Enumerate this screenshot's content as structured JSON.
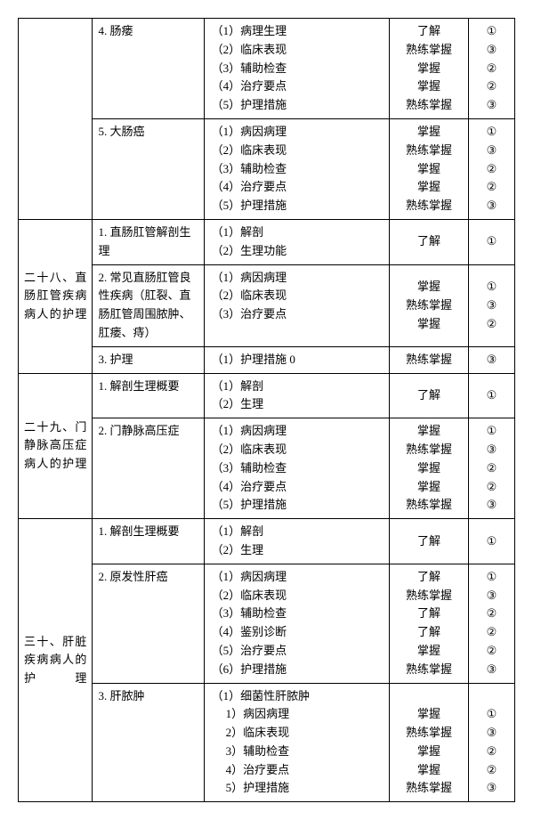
{
  "rows": [
    {
      "col1": {
        "text": "",
        "rowspan": 2
      },
      "col2": "4. 肠瘘",
      "col3": [
        {
          "t": "（1）病理生理",
          "sub": 0
        },
        {
          "t": "（2）临床表现",
          "sub": 0
        },
        {
          "t": "（3）辅助检查",
          "sub": 0
        },
        {
          "t": "（4）治疗要点",
          "sub": 0
        },
        {
          "t": "（5）护理措施",
          "sub": 0
        }
      ],
      "col4": [
        "了解",
        "熟练掌握",
        "掌握",
        "掌握",
        "熟练掌握"
      ],
      "col5": [
        "①",
        "③",
        "②",
        "②",
        "③"
      ]
    },
    {
      "col2": "5. 大肠癌",
      "col3": [
        {
          "t": "（1）病因病理",
          "sub": 0
        },
        {
          "t": "（2）临床表现",
          "sub": 0
        },
        {
          "t": "（3）辅助检查",
          "sub": 0
        },
        {
          "t": "（4）治疗要点",
          "sub": 0
        },
        {
          "t": "（5）护理措施",
          "sub": 0
        }
      ],
      "col4": [
        "掌握",
        "熟练掌握",
        "掌握",
        "掌握",
        "熟练掌握"
      ],
      "col5": [
        "①",
        "③",
        "②",
        "②",
        "③"
      ]
    },
    {
      "col1": {
        "text": "二十八、直肠肛管疾病病人的护理",
        "rowspan": 3
      },
      "col2": "1. 直肠肛管解剖生理",
      "col3": [
        {
          "t": "（1）解剖",
          "sub": 0
        },
        {
          "t": "（2）生理功能",
          "sub": 0
        }
      ],
      "col4": [
        "了解"
      ],
      "col5": [
        "①"
      ]
    },
    {
      "col2": "2. 常见直肠肛管良性疾病（肛裂、直肠肛管周围脓肿、肛瘘、痔）",
      "col3": [
        {
          "t": "（1）病因病理",
          "sub": 0
        },
        {
          "t": "（2）临床表现",
          "sub": 0
        },
        {
          "t": "（3）治疗要点",
          "sub": 0
        }
      ],
      "col4": [
        "掌握",
        "熟练掌握",
        "掌握"
      ],
      "col5": [
        "①",
        "③",
        "②"
      ]
    },
    {
      "col2": "3. 护理",
      "col3": [
        {
          "t": "（1）护理措施 0",
          "sub": 0
        }
      ],
      "col4": [
        "熟练掌握"
      ],
      "col5": [
        "③"
      ]
    },
    {
      "col1": {
        "text": "二十九、门静脉高压症病人的护理",
        "rowspan": 2
      },
      "col2": "1. 解剖生理概要",
      "col3": [
        {
          "t": "（1）解剖",
          "sub": 0
        },
        {
          "t": "（2）生理",
          "sub": 0
        }
      ],
      "col4": [
        "了解"
      ],
      "col5": [
        "①"
      ]
    },
    {
      "col2": "2. 门静脉高压症",
      "col3": [
        {
          "t": "（1）病因病理",
          "sub": 0
        },
        {
          "t": "（2）临床表现",
          "sub": 0
        },
        {
          "t": "（3）辅助检查",
          "sub": 0
        },
        {
          "t": "（4）治疗要点",
          "sub": 0
        },
        {
          "t": "（5）护理措施",
          "sub": 0
        }
      ],
      "col4": [
        "掌握",
        "熟练掌握",
        "掌握",
        "掌握",
        "熟练掌握"
      ],
      "col5": [
        "①",
        "③",
        "②",
        "②",
        "③"
      ]
    },
    {
      "col1": {
        "text": "三十、肝脏疾病病人的护理",
        "rowspan": 3
      },
      "col2": "1. 解剖生理概要",
      "col3": [
        {
          "t": "（1）解剖",
          "sub": 0
        },
        {
          "t": "（2）生理",
          "sub": 0
        }
      ],
      "col4": [
        "了解"
      ],
      "col5": [
        "①"
      ]
    },
    {
      "col2": "2. 原发性肝癌",
      "col3": [
        {
          "t": "（1）病因病理",
          "sub": 0
        },
        {
          "t": "（2）临床表现",
          "sub": 0
        },
        {
          "t": "（3）辅助检查",
          "sub": 0
        },
        {
          "t": "（4）鉴别诊断",
          "sub": 0
        },
        {
          "t": "（5）治疗要点",
          "sub": 0
        },
        {
          "t": "（6）护理措施",
          "sub": 0
        }
      ],
      "col4": [
        "了解",
        "熟练掌握",
        "了解",
        "了解",
        "掌握",
        "熟练掌握"
      ],
      "col5": [
        "①",
        "③",
        "②",
        "②",
        "②",
        "③"
      ]
    },
    {
      "col2": "3. 肝脓肿",
      "col3": [
        {
          "t": "（1）细菌性肝脓肿",
          "sub": 0
        },
        {
          "t": "1）病因病理",
          "sub": 1
        },
        {
          "t": "2）临床表现",
          "sub": 1
        },
        {
          "t": "3）辅助检查",
          "sub": 1
        },
        {
          "t": "4）治疗要点",
          "sub": 1
        },
        {
          "t": "5）护理措施",
          "sub": 1
        }
      ],
      "col4": [
        "",
        "掌握",
        "熟练掌握",
        "掌握",
        "掌握",
        "熟练掌握"
      ],
      "col5": [
        "",
        "①",
        "③",
        "②",
        "②",
        "③"
      ]
    }
  ]
}
